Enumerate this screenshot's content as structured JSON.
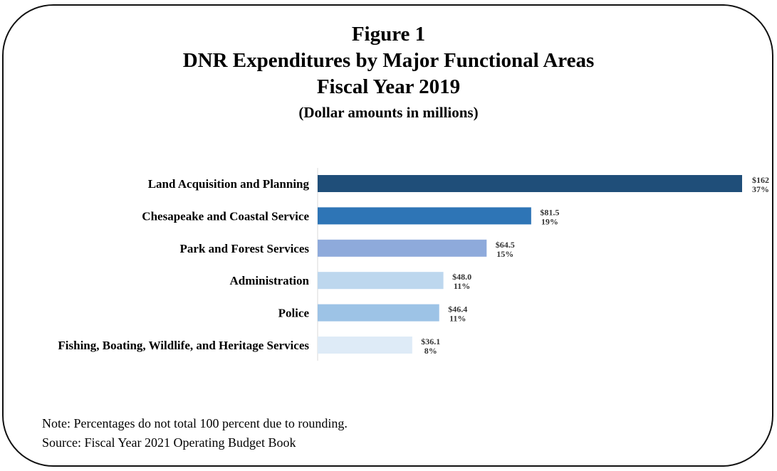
{
  "figure": {
    "label": "Figure 1",
    "title": "DNR Expenditures by Major Functional Areas",
    "subtitle": "Fiscal Year 2019",
    "units": "(Dollar amounts in millions)"
  },
  "chart_data": {
    "type": "bar",
    "orientation": "horizontal",
    "title": "DNR Expenditures by Major Functional Areas",
    "categories": [
      "Land Acquisition and Planning",
      "Chesapeake and Coastal Service",
      "Park and Forest Services",
      "Administration",
      "Police",
      "Fishing, Boating, Wildlife, and Heritage Services"
    ],
    "values": [
      162,
      81.5,
      64.5,
      48.0,
      46.4,
      36.1
    ],
    "value_labels": [
      "$162",
      "$81.5",
      "$64.5",
      "$48.0",
      "$46.4",
      "$36.1"
    ],
    "percent_labels": [
      "37%",
      "19%",
      "15%",
      "11%",
      "11%",
      "8%"
    ],
    "colors": [
      "#1f4e79",
      "#2e75b6",
      "#8eaadb",
      "#bdd7ee",
      "#9dc3e6",
      "#deebf7"
    ],
    "xlim": [
      0,
      162
    ],
    "grid": false,
    "legend": "none"
  },
  "notes": {
    "note": "Note:  Percentages do not total 100 percent due to rounding.",
    "source": "Source:  Fiscal Year 2021 Operating Budget Book"
  }
}
